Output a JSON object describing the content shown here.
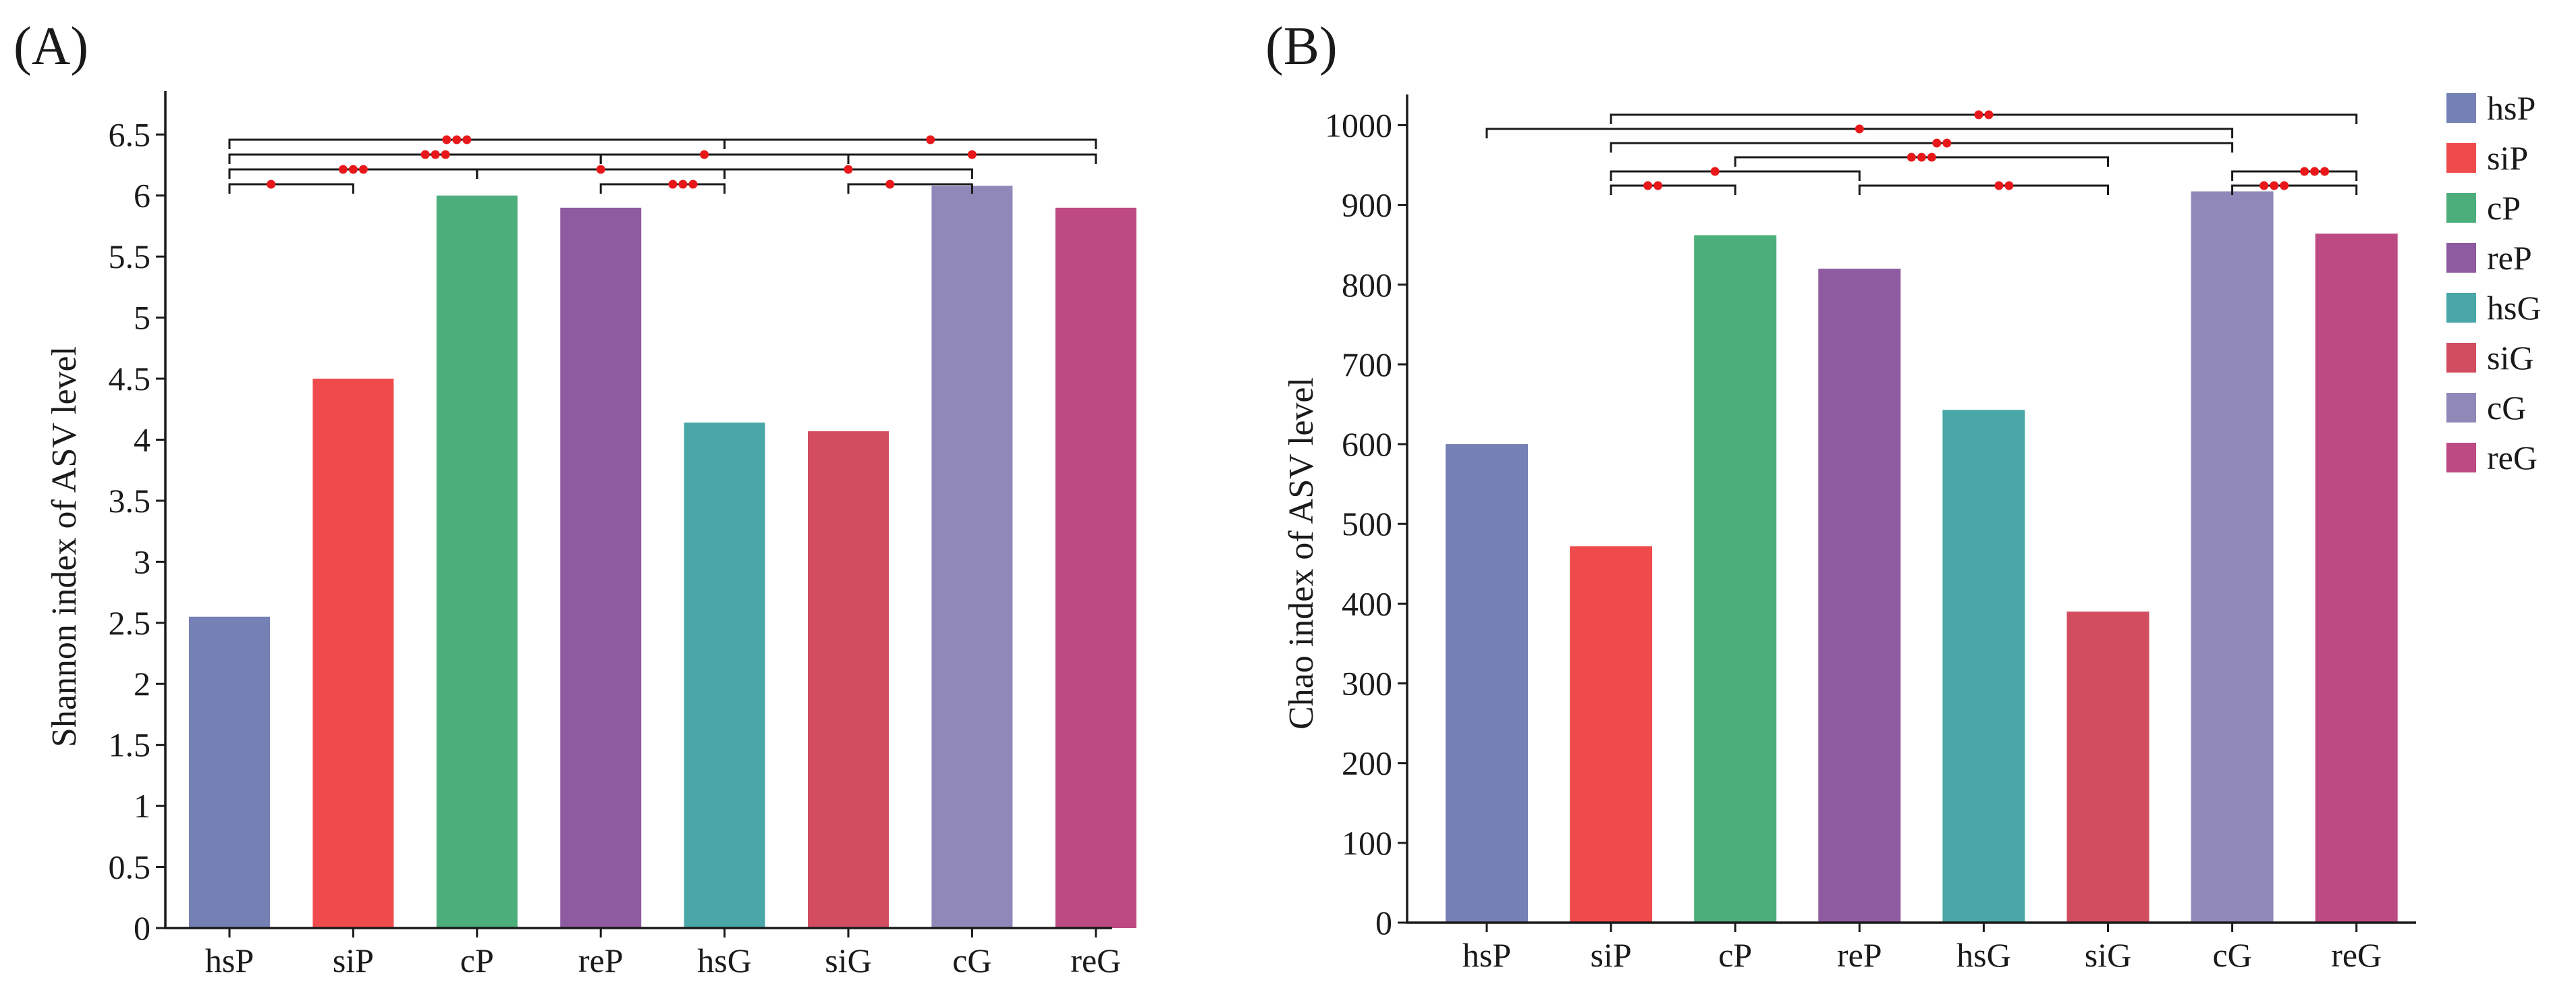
{
  "colors": {
    "hsP": "#7580b5",
    "siP": "#f04b4c",
    "cP": "#4cae7a",
    "reP": "#8e5ba0",
    "hsG": "#4aa7a7",
    "siG": "#d14d5f",
    "cG": "#8f88b9",
    "reG": "#bd4a83",
    "axis": "#1a1a1a",
    "bracket": "#1a1a1a",
    "star": "#e8181a"
  },
  "legend": {
    "placement": "right",
    "entries": [
      "hsP",
      "siP",
      "cP",
      "reP",
      "hsG",
      "siG",
      "cG",
      "reG"
    ]
  },
  "chart_data": [
    {
      "type": "bar",
      "panel_label": "(A)",
      "ylabel": "Shannon index of ASV level",
      "xlabel": "",
      "categories": [
        "hsP",
        "siP",
        "cP",
        "reP",
        "hsG",
        "siG",
        "cG",
        "reG"
      ],
      "values": [
        2.55,
        4.5,
        6.0,
        5.9,
        4.14,
        4.07,
        6.08,
        5.9
      ],
      "ylim": [
        0,
        6.8
      ],
      "yticks": [
        "0",
        "0.5",
        "1",
        "1.5",
        "2",
        "2.5",
        "3",
        "3.5",
        "4",
        "4.5",
        "5",
        "5.5",
        "6",
        "6.5"
      ],
      "grid": false,
      "significance": [
        {
          "from": "hsP",
          "to": "siP",
          "stars": "*"
        },
        {
          "from": "hsP",
          "to": "cP",
          "stars": "***"
        },
        {
          "from": "hsP",
          "to": "reP",
          "stars": "***"
        },
        {
          "from": "hsP",
          "to": "hsG",
          "stars": "***"
        },
        {
          "from": "cP",
          "to": "hsG",
          "stars": "*"
        },
        {
          "from": "reP",
          "to": "hsG",
          "stars": "***"
        },
        {
          "from": "reP",
          "to": "siG",
          "stars": "*"
        },
        {
          "from": "hsG",
          "to": "cG",
          "stars": "*"
        },
        {
          "from": "hsG",
          "to": "reG",
          "stars": "*"
        },
        {
          "from": "siG",
          "to": "cG",
          "stars": "*"
        },
        {
          "from": "siG",
          "to": "reG",
          "stars": "*"
        }
      ]
    },
    {
      "type": "bar",
      "panel_label": "(B)",
      "ylabel": "Chao index of ASV level",
      "xlabel": "",
      "categories": [
        "hsP",
        "siP",
        "cP",
        "reP",
        "hsG",
        "siG",
        "cG",
        "reG"
      ],
      "values": [
        600,
        472,
        862,
        820,
        643,
        390,
        917,
        864
      ],
      "ylim": [
        0,
        1030
      ],
      "yticks": [
        "0",
        "100",
        "200",
        "300",
        "400",
        "500",
        "600",
        "700",
        "800",
        "900",
        "1000"
      ],
      "grid": false,
      "significance": [
        {
          "from": "siP",
          "to": "cP",
          "stars": "**"
        },
        {
          "from": "cP",
          "to": "siG",
          "stars": "***"
        },
        {
          "from": "reP",
          "to": "siG",
          "stars": "**"
        },
        {
          "from": "siP",
          "to": "reP",
          "stars": "*"
        },
        {
          "from": "hsP",
          "to": "cG",
          "stars": "*"
        },
        {
          "from": "siP",
          "to": "cG",
          "stars": "**"
        },
        {
          "from": "cG",
          "to": "reG",
          "stars": "***"
        },
        {
          "from": "siP",
          "to": "reG",
          "stars": "**"
        },
        {
          "from": "cG",
          "to": "reG",
          "stars": "***"
        }
      ]
    }
  ]
}
